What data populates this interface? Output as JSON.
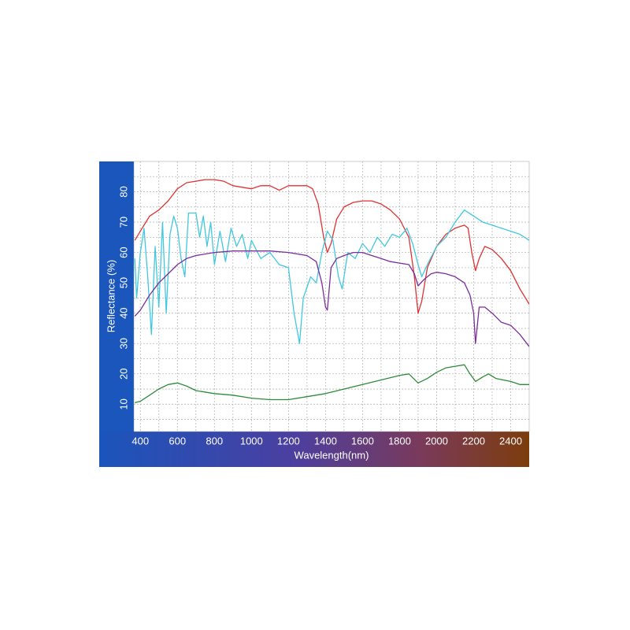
{
  "chart_data": {
    "type": "line",
    "y_label": "Reflectance (%)",
    "x_label": "Wavelength(nm)",
    "xlim": [
      365,
      2500
    ],
    "ylim": [
      1,
      90
    ],
    "xticks": [
      400,
      600,
      800,
      1000,
      1200,
      1400,
      1600,
      1800,
      2000,
      2200,
      2400
    ],
    "x_minor_ticks": [
      500,
      700,
      900,
      1100,
      1300,
      1500,
      1700,
      1900,
      2100,
      2300
    ],
    "yticks": [
      10,
      20,
      30,
      40,
      50,
      60,
      70,
      80
    ],
    "y_minor_ticks": [
      5,
      15,
      25,
      35,
      45,
      55,
      65,
      75,
      85
    ],
    "grid": true,
    "series": [
      {
        "color": "#e03232",
        "x": [
          370,
          400,
          450,
          500,
          550,
          600,
          650,
          700,
          750,
          800,
          850,
          900,
          950,
          1000,
          1050,
          1100,
          1150,
          1200,
          1250,
          1300,
          1330,
          1360,
          1390,
          1410,
          1430,
          1460,
          1500,
          1550,
          1600,
          1650,
          1700,
          1750,
          1800,
          1850,
          1880,
          1900,
          1920,
          1950,
          2000,
          2050,
          2100,
          2150,
          2170,
          2190,
          2210,
          2230,
          2260,
          2300,
          2350,
          2400,
          2450,
          2500
        ],
        "values": [
          64,
          67,
          72,
          74,
          77,
          81,
          83,
          83.5,
          84,
          84,
          83.5,
          82,
          81.5,
          81,
          82,
          82,
          80.5,
          82,
          82,
          82,
          81,
          76,
          65,
          60,
          63,
          71,
          75,
          76.5,
          77,
          77,
          76,
          74,
          71,
          65,
          52,
          40,
          44,
          55,
          62,
          66,
          68,
          69,
          68,
          60,
          54,
          58,
          62,
          61,
          58,
          54,
          48,
          43
        ]
      },
      {
        "color": "#40c8e0",
        "x": [
          370,
          380,
          400,
          420,
          440,
          460,
          480,
          500,
          520,
          540,
          560,
          580,
          600,
          620,
          640,
          660,
          700,
          720,
          740,
          760,
          780,
          800,
          830,
          860,
          890,
          920,
          950,
          980,
          1000,
          1050,
          1100,
          1150,
          1200,
          1230,
          1260,
          1280,
          1320,
          1350,
          1380,
          1410,
          1440,
          1470,
          1490,
          1520,
          1560,
          1600,
          1640,
          1680,
          1720,
          1760,
          1800,
          1840,
          1870,
          1900,
          1920,
          1950,
          2000,
          2050,
          2100,
          2150,
          2200,
          2250,
          2300,
          2350,
          2400,
          2450,
          2500
        ],
        "values": [
          58,
          45,
          60,
          68,
          52,
          33,
          62,
          42,
          70,
          40,
          66,
          72,
          68,
          58,
          52,
          73,
          73,
          65,
          72,
          62,
          70,
          56,
          67,
          57,
          68,
          62,
          66,
          58,
          64,
          58,
          60,
          56,
          55,
          40,
          30,
          45,
          52,
          50,
          60,
          67,
          64,
          52,
          48,
          60,
          58,
          63,
          60,
          65,
          62,
          66,
          65,
          68,
          63,
          56,
          52,
          56,
          62,
          65,
          70,
          74,
          72,
          70,
          69,
          68,
          67,
          66,
          64
        ]
      },
      {
        "color": "#7b2e9c",
        "x": [
          370,
          400,
          450,
          500,
          550,
          600,
          650,
          700,
          800,
          900,
          1000,
          1100,
          1200,
          1300,
          1350,
          1380,
          1400,
          1410,
          1430,
          1460,
          1500,
          1550,
          1600,
          1650,
          1700,
          1750,
          1800,
          1850,
          1880,
          1900,
          1930,
          1970,
          2000,
          2050,
          2100,
          2150,
          2180,
          2200,
          2210,
          2230,
          2260,
          2300,
          2350,
          2400,
          2450,
          2500
        ],
        "values": [
          39,
          41,
          46,
          50,
          53,
          56,
          58,
          59,
          60,
          60.5,
          60.5,
          60.5,
          60,
          59,
          57,
          50,
          42,
          41,
          55,
          58,
          59,
          60,
          60,
          59,
          58,
          57,
          56.5,
          56,
          53,
          49,
          51,
          53,
          53.5,
          53,
          52,
          50,
          46,
          40,
          30,
          42,
          42,
          40,
          37,
          36,
          33,
          29
        ]
      },
      {
        "color": "#2e8b3a",
        "x": [
          370,
          400,
          450,
          500,
          550,
          600,
          650,
          700,
          800,
          900,
          1000,
          1100,
          1200,
          1300,
          1400,
          1500,
          1600,
          1700,
          1800,
          1850,
          1900,
          1950,
          2000,
          2050,
          2100,
          2150,
          2180,
          2210,
          2250,
          2280,
          2320,
          2400,
          2450,
          2500
        ],
        "values": [
          10.5,
          11,
          13,
          15,
          16.5,
          17,
          16,
          14.5,
          13.5,
          13,
          12,
          11.5,
          11.5,
          12.5,
          13.5,
          15,
          16.5,
          18,
          19.5,
          20,
          17,
          18.5,
          20.5,
          22,
          22.5,
          23,
          20,
          17.5,
          19,
          20,
          18.5,
          17.5,
          16.5,
          16.5
        ]
      }
    ]
  }
}
